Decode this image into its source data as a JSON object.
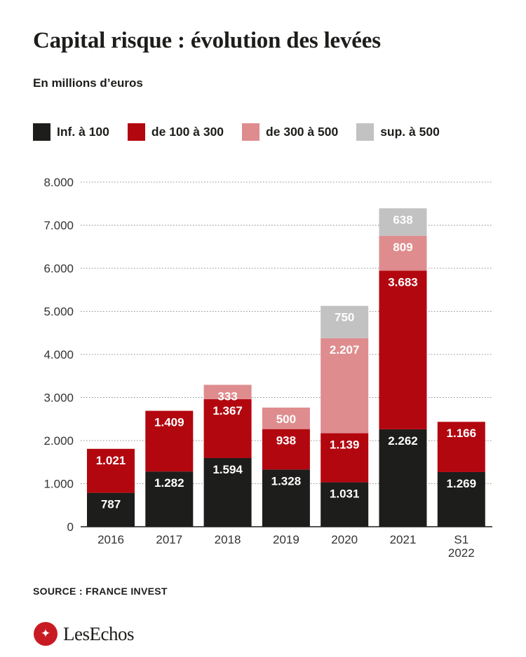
{
  "chart_data": {
    "type": "stacked-bar",
    "title": "Capital risque : évolution des levées",
    "subtitle": "En millions d’euros",
    "categories": [
      "2016",
      "2017",
      "2018",
      "2019",
      "2020",
      "2021",
      "S1\n2022"
    ],
    "series": [
      {
        "name": "Inf. à 100",
        "color": "#1d1d1b",
        "values": [
          787,
          1282,
          1594,
          1328,
          1031,
          2262,
          1269
        ],
        "labels": [
          "787",
          "1.282",
          "1.594",
          "1.328",
          "1.031",
          "2.262",
          "1.269"
        ]
      },
      {
        "name": "de 100 à 300",
        "color": "#b3070f",
        "values": [
          1021,
          1409,
          1367,
          938,
          1139,
          3683,
          1166
        ],
        "labels": [
          "1.021",
          "1.409",
          "1.367",
          "938",
          "1.139",
          "3.683",
          "1.166"
        ]
      },
      {
        "name": "de 300 à 500",
        "color": "#df8c8e",
        "values": [
          0,
          0,
          333,
          500,
          2207,
          809,
          0
        ],
        "labels": [
          "",
          "",
          "333",
          "500",
          "2.207",
          "809",
          ""
        ]
      },
      {
        "name": "sup. à 500",
        "color": "#c2c2c2",
        "values": [
          0,
          0,
          0,
          0,
          750,
          638,
          0
        ],
        "labels": [
          "",
          "",
          "",
          "",
          "750",
          "638",
          ""
        ]
      }
    ],
    "ylim": [
      0,
      8000
    ],
    "yticks": [
      0,
      1000,
      2000,
      3000,
      4000,
      5000,
      6000,
      7000,
      8000
    ],
    "ytick_labels": [
      "0",
      "1.000",
      "2.000",
      "3.000",
      "4.000",
      "5.000",
      "6.000",
      "7.000",
      "8.000"
    ],
    "grid": true,
    "legend": "top-left"
  },
  "source": "SOURCE : FRANCE INVEST",
  "logo": {
    "mark": "✦",
    "text": "LesEchos"
  }
}
